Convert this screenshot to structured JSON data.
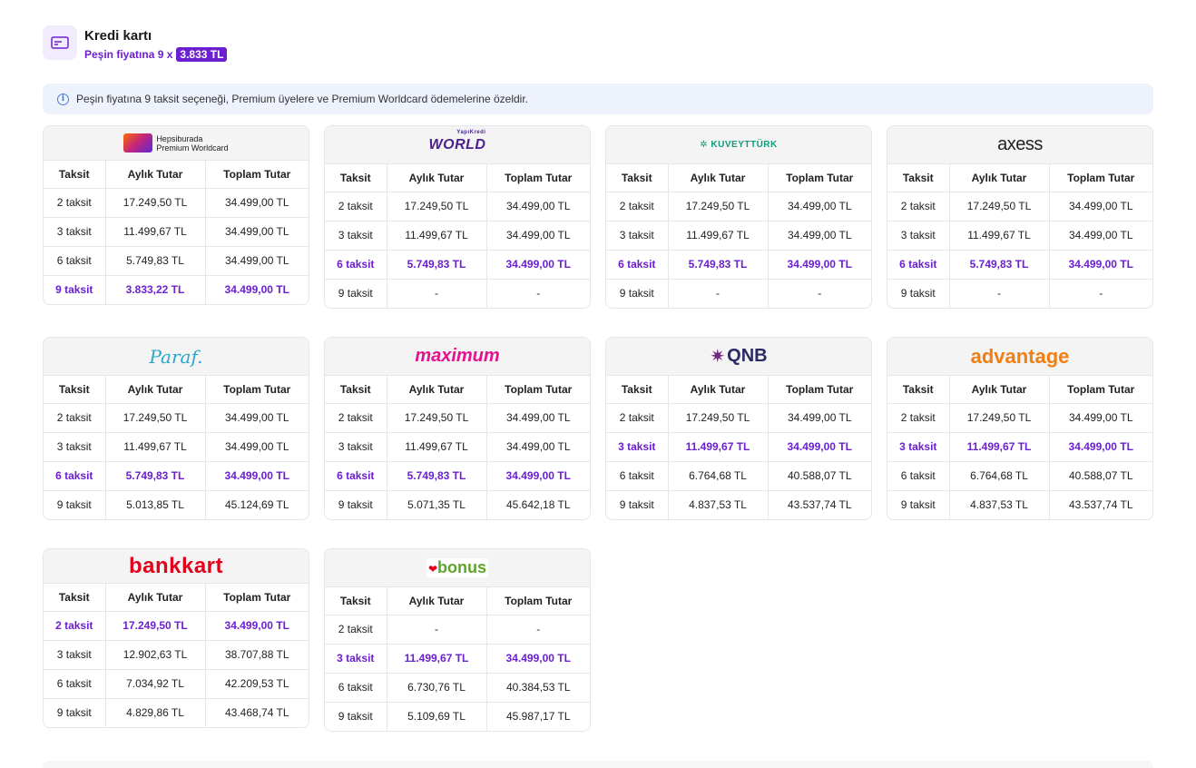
{
  "header": {
    "title": "Kredi kartı",
    "subtitle": "Peşin fiyatına 9 x",
    "badge": "3.833 TL"
  },
  "info": "Peşin fiyatına 9 taksit seçeneği, Premium üyelere ve Premium Worldcard ödemelerine özeldir.",
  "columns": {
    "c1": "Taksit",
    "c2": "Aylık Tutar",
    "c3": "Toplam Tutar"
  },
  "cards": [
    {
      "logo_line1": "Hepsiburada",
      "logo_line2": "Premium Worldcard",
      "rows": [
        [
          "2 taksit",
          "17.249,50 TL",
          "34.499,00 TL"
        ],
        [
          "3 taksit",
          "11.499,67 TL",
          "34.499,00 TL"
        ],
        [
          "6 taksit",
          "5.749,83 TL",
          "34.499,00 TL"
        ],
        [
          "9 taksit",
          "3.833,22 TL",
          "34.499,00 TL"
        ]
      ],
      "highlight": 3
    },
    {
      "logo": "WORLD",
      "logo_small": "YapıKredi",
      "rows": [
        [
          "2 taksit",
          "17.249,50 TL",
          "34.499,00 TL"
        ],
        [
          "3 taksit",
          "11.499,67 TL",
          "34.499,00 TL"
        ],
        [
          "6 taksit",
          "5.749,83 TL",
          "34.499,00 TL"
        ],
        [
          "9 taksit",
          "-",
          "-"
        ]
      ],
      "highlight": 2
    },
    {
      "logo": "KUVEYTTÜRK",
      "rows": [
        [
          "2 taksit",
          "17.249,50 TL",
          "34.499,00 TL"
        ],
        [
          "3 taksit",
          "11.499,67 TL",
          "34.499,00 TL"
        ],
        [
          "6 taksit",
          "5.749,83 TL",
          "34.499,00 TL"
        ],
        [
          "9 taksit",
          "-",
          "-"
        ]
      ],
      "highlight": 2
    },
    {
      "logo": "axess",
      "rows": [
        [
          "2 taksit",
          "17.249,50 TL",
          "34.499,00 TL"
        ],
        [
          "3 taksit",
          "11.499,67 TL",
          "34.499,00 TL"
        ],
        [
          "6 taksit",
          "5.749,83 TL",
          "34.499,00 TL"
        ],
        [
          "9 taksit",
          "-",
          "-"
        ]
      ],
      "highlight": 2
    },
    {
      "logo": "Paraf.",
      "rows": [
        [
          "2 taksit",
          "17.249,50 TL",
          "34.499,00 TL"
        ],
        [
          "3 taksit",
          "11.499,67 TL",
          "34.499,00 TL"
        ],
        [
          "6 taksit",
          "5.749,83 TL",
          "34.499,00 TL"
        ],
        [
          "9 taksit",
          "5.013,85 TL",
          "45.124,69 TL"
        ]
      ],
      "highlight": 2
    },
    {
      "logo": "maximum",
      "rows": [
        [
          "2 taksit",
          "17.249,50 TL",
          "34.499,00 TL"
        ],
        [
          "3 taksit",
          "11.499,67 TL",
          "34.499,00 TL"
        ],
        [
          "6 taksit",
          "5.749,83 TL",
          "34.499,00 TL"
        ],
        [
          "9 taksit",
          "5.071,35 TL",
          "45.642,18 TL"
        ]
      ],
      "highlight": 2
    },
    {
      "logo": "QNB",
      "rows": [
        [
          "2 taksit",
          "17.249,50 TL",
          "34.499,00 TL"
        ],
        [
          "3 taksit",
          "11.499,67 TL",
          "34.499,00 TL"
        ],
        [
          "6 taksit",
          "6.764,68 TL",
          "40.588,07 TL"
        ],
        [
          "9 taksit",
          "4.837,53 TL",
          "43.537,74 TL"
        ]
      ],
      "highlight": 1
    },
    {
      "logo": "advantage",
      "rows": [
        [
          "2 taksit",
          "17.249,50 TL",
          "34.499,00 TL"
        ],
        [
          "3 taksit",
          "11.499,67 TL",
          "34.499,00 TL"
        ],
        [
          "6 taksit",
          "6.764,68 TL",
          "40.588,07 TL"
        ],
        [
          "9 taksit",
          "4.837,53 TL",
          "43.537,74 TL"
        ]
      ],
      "highlight": 1
    },
    {
      "logo": "bankkart",
      "rows": [
        [
          "2 taksit",
          "17.249,50 TL",
          "34.499,00 TL"
        ],
        [
          "3 taksit",
          "12.902,63 TL",
          "38.707,88 TL"
        ],
        [
          "6 taksit",
          "7.034,92 TL",
          "42.209,53 TL"
        ],
        [
          "9 taksit",
          "4.829,86 TL",
          "43.468,74 TL"
        ]
      ],
      "highlight": 0
    },
    {
      "logo": "bonus",
      "rows": [
        [
          "2 taksit",
          "-",
          "-"
        ],
        [
          "3 taksit",
          "11.499,67 TL",
          "34.499,00 TL"
        ],
        [
          "6 taksit",
          "6.730,76 TL",
          "40.384,53 TL"
        ],
        [
          "9 taksit",
          "5.109,69 TL",
          "45.987,17 TL"
        ]
      ],
      "highlight": 1
    }
  ]
}
